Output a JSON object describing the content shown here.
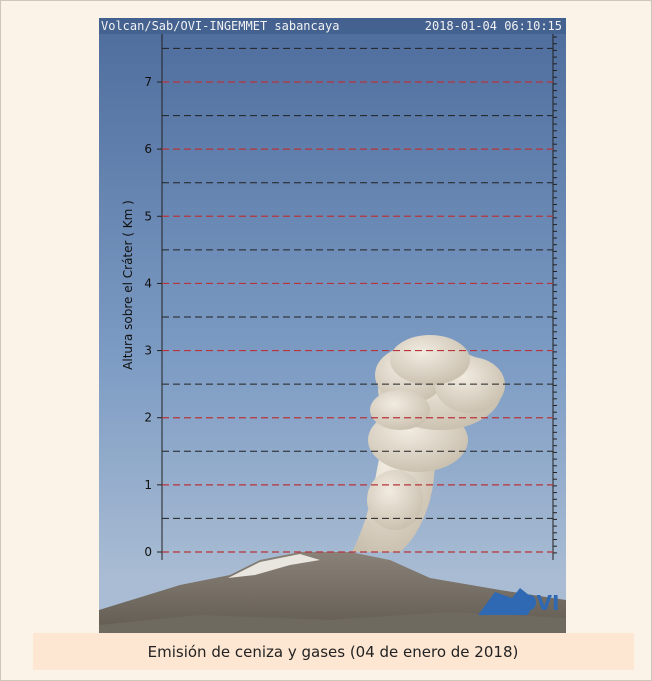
{
  "header": {
    "station": "Volcan/Sab/OVI-INGEMMET sabancaya",
    "timestamp": "2018-01-04 06:10:15"
  },
  "axis": {
    "label": "Altura sobre el Cráter ( Km )",
    "ticks": [
      0,
      1,
      2,
      3,
      4,
      5,
      6,
      7
    ]
  },
  "logo": {
    "text": "OVI"
  },
  "caption": "Emisión de ceniza y gases (04 de enero de 2018)"
}
